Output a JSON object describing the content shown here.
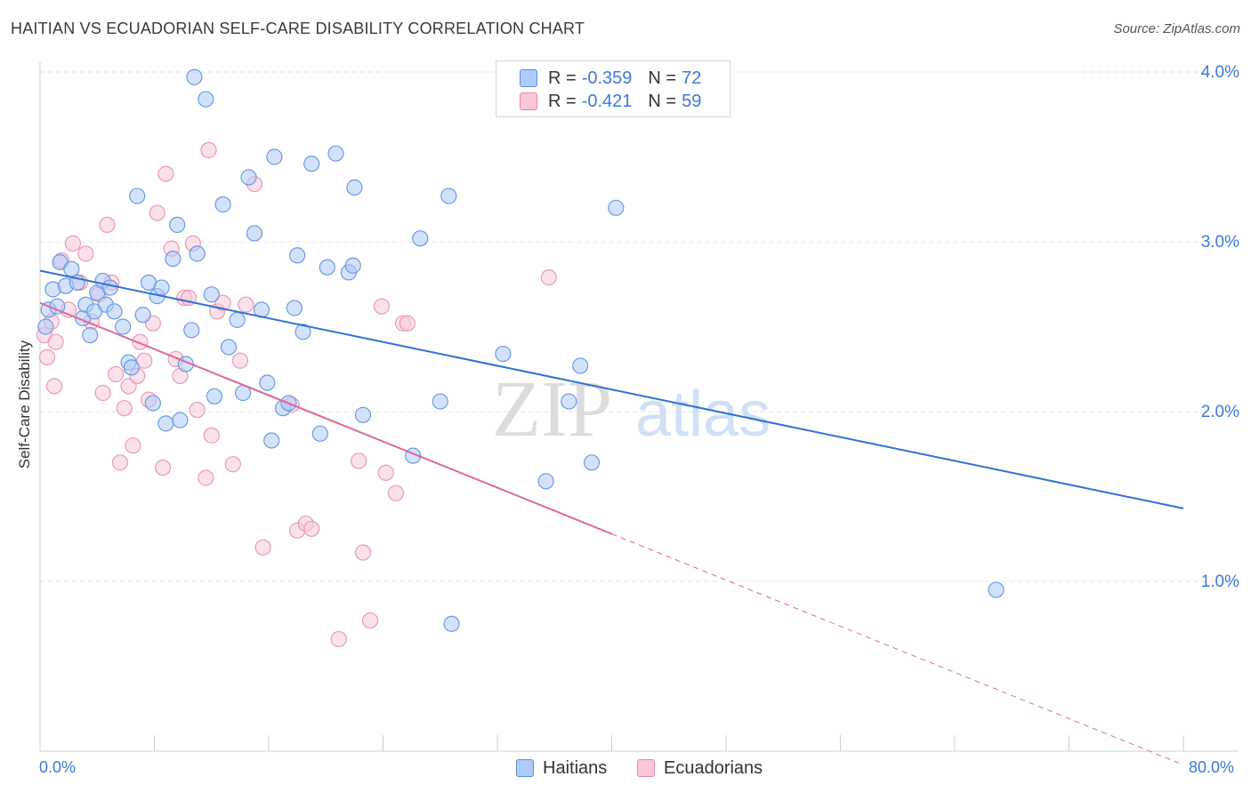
{
  "title": "HAITIAN VS ECUADORIAN SELF-CARE DISABILITY CORRELATION CHART",
  "source": "Source: ZipAtlas.com",
  "watermark": {
    "zip": "ZIP",
    "atlas": "atlas"
  },
  "legend_top": {
    "rows": [
      {
        "r_label": "R =",
        "r_value": "-0.359",
        "n_label": "N =",
        "n_value": "72",
        "color": "#aecbfa",
        "border": "#5b8fd6"
      },
      {
        "r_label": "R =",
        "r_value": "-0.421",
        "n_label": "N =",
        "n_value": "59",
        "color": "#f8c8d8",
        "border": "#e784a6"
      }
    ]
  },
  "legend_bottom": {
    "haitians": "Haitians",
    "ecuadorians": "Ecuadorians"
  },
  "colors": {
    "haitian_fill": "#aecbfa",
    "haitian_stroke": "#6a9be0",
    "haitian_line": "#2f72d6",
    "ecuadorian_fill": "#f8c8d8",
    "ecuadorian_stroke": "#ea9ab6",
    "ecuadorian_line": "#e0679a",
    "tick_text": "#3b78d8",
    "grid": "#e3e3e3"
  },
  "chart_data": {
    "type": "scatter",
    "title": "HAITIAN VS ECUADORIAN SELF-CARE DISABILITY CORRELATION CHART",
    "xlabel": "",
    "ylabel": "Self-Care Disability",
    "xlim": [
      0,
      80
    ],
    "ylim": [
      0,
      4.1
    ],
    "x_tick_labels": [
      "0.0%",
      "80.0%"
    ],
    "y_ticks": [
      1.0,
      2.0,
      3.0,
      4.0
    ],
    "y_tick_labels": [
      "1.0%",
      "2.0%",
      "3.0%",
      "4.0%"
    ],
    "grid": true,
    "legend_placement": "top-center",
    "series": [
      {
        "name": "Haitians",
        "points": [
          [
            0.4,
            2.5
          ],
          [
            0.6,
            2.6
          ],
          [
            0.9,
            2.72
          ],
          [
            1.2,
            2.62
          ],
          [
            1.4,
            2.88
          ],
          [
            1.8,
            2.74
          ],
          [
            2.2,
            2.84
          ],
          [
            2.6,
            2.76
          ],
          [
            3.0,
            2.55
          ],
          [
            3.2,
            2.63
          ],
          [
            3.5,
            2.45
          ],
          [
            3.8,
            2.59
          ],
          [
            4.0,
            2.7
          ],
          [
            4.4,
            2.77
          ],
          [
            4.6,
            2.63
          ],
          [
            4.9,
            2.73
          ],
          [
            5.2,
            2.59
          ],
          [
            5.8,
            2.5
          ],
          [
            6.2,
            2.29
          ],
          [
            6.4,
            2.26
          ],
          [
            6.8,
            3.27
          ],
          [
            7.2,
            2.57
          ],
          [
            7.6,
            2.76
          ],
          [
            7.9,
            2.05
          ],
          [
            8.2,
            2.68
          ],
          [
            8.5,
            2.73
          ],
          [
            8.8,
            1.93
          ],
          [
            9.3,
            2.9
          ],
          [
            9.6,
            3.1
          ],
          [
            9.8,
            1.95
          ],
          [
            10.2,
            2.28
          ],
          [
            10.6,
            2.48
          ],
          [
            11.0,
            2.93
          ],
          [
            10.8,
            3.97
          ],
          [
            11.6,
            3.84
          ],
          [
            12.0,
            2.69
          ],
          [
            12.2,
            2.09
          ],
          [
            12.8,
            3.22
          ],
          [
            13.2,
            2.38
          ],
          [
            13.8,
            2.54
          ],
          [
            14.2,
            2.11
          ],
          [
            14.6,
            3.38
          ],
          [
            15.0,
            3.05
          ],
          [
            15.5,
            2.6
          ],
          [
            15.9,
            2.17
          ],
          [
            16.2,
            1.83
          ],
          [
            16.4,
            3.5
          ],
          [
            17.0,
            2.02
          ],
          [
            17.4,
            2.05
          ],
          [
            17.8,
            2.61
          ],
          [
            18.0,
            2.92
          ],
          [
            18.4,
            2.47
          ],
          [
            19.0,
            3.46
          ],
          [
            19.6,
            1.87
          ],
          [
            20.1,
            2.85
          ],
          [
            20.7,
            3.52
          ],
          [
            21.6,
            2.82
          ],
          [
            21.9,
            2.86
          ],
          [
            22.0,
            3.32
          ],
          [
            22.6,
            1.98
          ],
          [
            26.1,
            1.74
          ],
          [
            26.6,
            3.02
          ],
          [
            28.0,
            2.06
          ],
          [
            28.6,
            3.27
          ],
          [
            28.8,
            0.75
          ],
          [
            32.4,
            2.34
          ],
          [
            35.4,
            1.59
          ],
          [
            37.0,
            2.06
          ],
          [
            37.8,
            2.27
          ],
          [
            38.6,
            1.7
          ],
          [
            40.3,
            3.2
          ],
          [
            66.9,
            0.95
          ]
        ]
      },
      {
        "name": "Ecuadorians",
        "points": [
          [
            0.3,
            2.45
          ],
          [
            0.5,
            2.32
          ],
          [
            0.8,
            2.53
          ],
          [
            1.1,
            2.41
          ],
          [
            1.5,
            2.89
          ],
          [
            2.3,
            2.99
          ],
          [
            2.8,
            2.76
          ],
          [
            3.2,
            2.93
          ],
          [
            3.6,
            2.53
          ],
          [
            4.1,
            2.69
          ],
          [
            4.4,
            2.11
          ],
          [
            4.7,
            3.1
          ],
          [
            5.0,
            2.76
          ],
          [
            5.3,
            2.22
          ],
          [
            5.6,
            1.7
          ],
          [
            5.9,
            2.02
          ],
          [
            6.2,
            2.15
          ],
          [
            6.5,
            1.8
          ],
          [
            6.8,
            2.21
          ],
          [
            7.0,
            2.41
          ],
          [
            7.3,
            2.3
          ],
          [
            7.6,
            2.07
          ],
          [
            7.9,
            2.52
          ],
          [
            8.2,
            3.17
          ],
          [
            8.6,
            1.67
          ],
          [
            8.8,
            3.4
          ],
          [
            9.2,
            2.96
          ],
          [
            9.5,
            2.31
          ],
          [
            9.8,
            2.21
          ],
          [
            10.1,
            2.67
          ],
          [
            10.4,
            2.67
          ],
          [
            10.7,
            2.99
          ],
          [
            11.0,
            2.01
          ],
          [
            11.6,
            1.61
          ],
          [
            11.8,
            3.54
          ],
          [
            12.0,
            1.86
          ],
          [
            12.4,
            2.59
          ],
          [
            12.8,
            2.64
          ],
          [
            13.5,
            1.69
          ],
          [
            14.0,
            2.3
          ],
          [
            14.4,
            2.63
          ],
          [
            15.0,
            3.34
          ],
          [
            15.6,
            1.2
          ],
          [
            17.6,
            2.04
          ],
          [
            18.0,
            1.3
          ],
          [
            18.6,
            1.34
          ],
          [
            19.0,
            1.31
          ],
          [
            20.9,
            0.66
          ],
          [
            22.3,
            1.71
          ],
          [
            22.6,
            1.17
          ],
          [
            23.1,
            0.77
          ],
          [
            23.9,
            2.62
          ],
          [
            24.2,
            1.64
          ],
          [
            24.9,
            1.52
          ],
          [
            25.4,
            2.52
          ],
          [
            25.7,
            2.52
          ],
          [
            35.6,
            2.79
          ],
          [
            2.0,
            2.6
          ],
          [
            1.0,
            2.15
          ]
        ]
      }
    ],
    "trendlines": [
      {
        "name": "Haitians",
        "from": [
          0,
          2.83
        ],
        "to": [
          80,
          1.43
        ],
        "dashed_from": null
      },
      {
        "name": "Ecuadorians",
        "from": [
          0,
          2.64
        ],
        "to": [
          40,
          1.28
        ],
        "dashed_to": [
          80,
          -0.08
        ]
      }
    ]
  }
}
